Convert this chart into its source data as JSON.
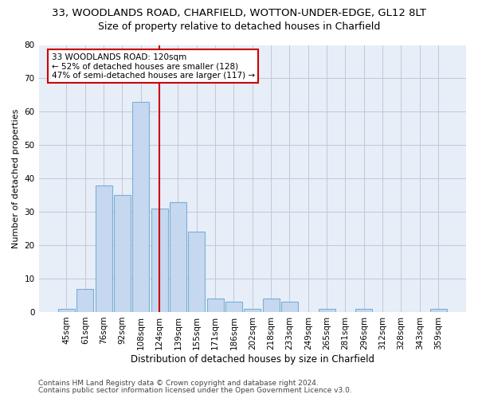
{
  "title": "33, WOODLANDS ROAD, CHARFIELD, WOTTON-UNDER-EDGE, GL12 8LT",
  "subtitle": "Size of property relative to detached houses in Charfield",
  "xlabel": "Distribution of detached houses by size in Charfield",
  "ylabel": "Number of detached properties",
  "categories": [
    "45sqm",
    "61sqm",
    "76sqm",
    "92sqm",
    "108sqm",
    "124sqm",
    "139sqm",
    "155sqm",
    "171sqm",
    "186sqm",
    "202sqm",
    "218sqm",
    "233sqm",
    "249sqm",
    "265sqm",
    "281sqm",
    "296sqm",
    "312sqm",
    "328sqm",
    "343sqm",
    "359sqm"
  ],
  "values": [
    1,
    7,
    38,
    35,
    63,
    31,
    33,
    24,
    4,
    3,
    1,
    4,
    3,
    0,
    1,
    0,
    1,
    0,
    0,
    0,
    1
  ],
  "bar_color": "#c5d8f0",
  "bar_edgecolor": "#7bafd4",
  "bar_linewidth": 0.8,
  "vline_index": 5,
  "vline_color": "#cc0000",
  "vline_linewidth": 1.5,
  "annotation_text": "33 WOODLANDS ROAD: 120sqm\n← 52% of detached houses are smaller (128)\n47% of semi-detached houses are larger (117) →",
  "annotation_box_color": "white",
  "annotation_box_edgecolor": "#cc0000",
  "ylim": [
    0,
    80
  ],
  "yticks": [
    0,
    10,
    20,
    30,
    40,
    50,
    60,
    70,
    80
  ],
  "grid_color": "#c0c8d8",
  "background_color": "#e8eef8",
  "footer1": "Contains HM Land Registry data © Crown copyright and database right 2024.",
  "footer2": "Contains public sector information licensed under the Open Government Licence v3.0.",
  "title_fontsize": 9.5,
  "subtitle_fontsize": 9,
  "xlabel_fontsize": 8.5,
  "ylabel_fontsize": 8,
  "tick_fontsize": 7.5,
  "footer_fontsize": 6.5,
  "annotation_fontsize": 7.5
}
